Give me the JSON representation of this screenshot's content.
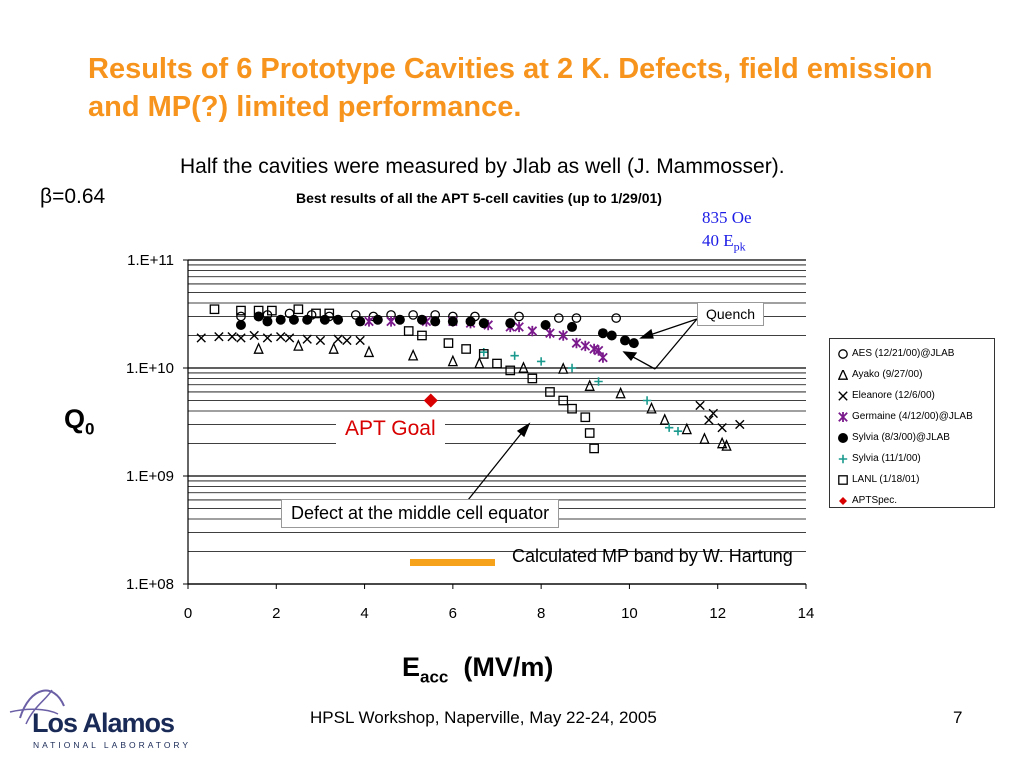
{
  "slide": {
    "title": "Results of 6 Prototype Cavities at 2 K.  Defects, field emission and MP(?) limited performance.",
    "subtitle": "Half the cavities were measured by Jlab as well (J. Mammosser).",
    "beta": "β=0.64",
    "footer": "HPSL Workshop, Naperville, May 22-24, 2005",
    "page": "7",
    "logo_name": "Los Alamos",
    "logo_sub": "NATIONAL LABORATORY"
  },
  "annotations": {
    "quench_oe": "835 Oe",
    "quench_epk": "40 E",
    "quench_epk_sub": "pk",
    "quench": "Quench",
    "apt_goal": "APT Goal",
    "defect": "Defect at the middle cell equator",
    "mp_band": "Calculated MP band by W. Hartung"
  },
  "colors": {
    "title": "#f7941d",
    "apt_spec": "#d80000",
    "germaine": "#7a1a8c",
    "sylvia_nov": "#1a9a8e",
    "mp_band": "#f7a21b",
    "quench_text": "#1c1ce6"
  },
  "chart_data": {
    "type": "scatter",
    "title": "Best results of all the APT 5-cell cavities (up to 1/29/01)",
    "xlabel": "E",
    "xlabel_sub": "acc",
    "xlabel_unit": "(MV/m)",
    "ylabel": "Q",
    "ylabel_sub": "0",
    "xlim": [
      0,
      14
    ],
    "ylim": [
      100000000,
      100000000000
    ],
    "yscale": "log",
    "grid": true,
    "legend_position": "right",
    "x_ticks": [
      "0",
      "2",
      "4",
      "6",
      "8",
      "10",
      "12",
      "14"
    ],
    "y_ticks": [
      "1.E+08",
      "1.E+09",
      "1.E+10",
      "1.E+11"
    ],
    "series": [
      {
        "name": "AES (12/21/00)@JLAB",
        "marker": "circle-open",
        "color": "#000000",
        "x": [
          1.2,
          1.8,
          2.3,
          2.8,
          3.2,
          3.8,
          4.2,
          4.6,
          5.1,
          5.6,
          6.0,
          6.5,
          7.5,
          8.4,
          8.8,
          9.7
        ],
        "y": [
          30000000000,
          31000000000,
          32000000000,
          31000000000,
          30000000000,
          31000000000,
          30000000000,
          31000000000,
          31000000000,
          31000000000,
          30000000000,
          30000000000,
          30000000000,
          29000000000,
          29000000000,
          29000000000
        ]
      },
      {
        "name": "Ayako (9/27/00)",
        "marker": "triangle-open",
        "color": "#000000",
        "x": [
          1.6,
          2.5,
          3.3,
          4.1,
          5.1,
          6.0,
          6.6,
          7.6,
          8.5,
          9.1,
          9.8,
          10.5,
          10.8,
          11.3,
          11.7,
          12.1,
          12.2
        ],
        "y": [
          15000000000,
          16000000000,
          15000000000,
          14000000000,
          13000000000,
          11500000000,
          11000000000,
          10000000000,
          9800000000,
          6800000000,
          5800000000,
          4200000000,
          3300000000,
          2700000000,
          2200000000,
          2000000000,
          1900000000
        ],
        "x_extra": []
      },
      {
        "name": "Eleanore (12/6/00)",
        "marker": "x",
        "color": "#000000",
        "x": [
          0.3,
          0.7,
          1.0,
          1.2,
          1.5,
          1.8,
          2.1,
          2.3,
          2.7,
          3.0,
          3.4,
          3.6,
          3.9,
          11.6,
          11.9,
          11.8,
          12.1,
          12.5
        ],
        "y": [
          19000000000,
          19500000000,
          19500000000,
          19000000000,
          20000000000,
          19000000000,
          19500000000,
          19000000000,
          18500000000,
          18000000000,
          18500000000,
          18000000000,
          18000000000,
          4500000000,
          3800000000,
          3300000000,
          2800000000,
          3000000000
        ]
      },
      {
        "name": "Germaine (4/12/00)@JLAB",
        "marker": "star",
        "color": "#7a1a8c",
        "x": [
          4.1,
          4.6,
          5.4,
          6.0,
          6.4,
          6.8,
          7.3,
          7.5,
          7.8,
          8.2,
          8.5,
          8.8,
          9.0,
          9.2,
          9.3,
          9.4
        ],
        "y": [
          27000000000,
          27000000000,
          27000000000,
          27000000000,
          26000000000,
          25000000000,
          24000000000,
          24000000000,
          22000000000,
          21000000000,
          20000000000,
          17000000000,
          16000000000,
          15000000000,
          14500000000,
          12500000000
        ]
      },
      {
        "name": "Sylvia (8/3/00)@JLAB",
        "marker": "circle-filled",
        "color": "#000000",
        "x": [
          1.2,
          1.6,
          1.8,
          2.1,
          2.4,
          2.7,
          3.1,
          3.4,
          3.9,
          4.3,
          4.8,
          5.3,
          5.6,
          6.0,
          6.4,
          6.7,
          7.3,
          8.1,
          8.7,
          9.4,
          9.6,
          9.9,
          10.1
        ],
        "y": [
          25000000000,
          30000000000,
          27000000000,
          28000000000,
          28000000000,
          28000000000,
          28000000000,
          28000000000,
          27000000000,
          28000000000,
          28000000000,
          28000000000,
          27000000000,
          27000000000,
          27000000000,
          26000000000,
          26000000000,
          25000000000,
          24000000000,
          21000000000,
          20000000000,
          18000000000,
          17000000000
        ]
      },
      {
        "name": "Sylvia (11/1/00)",
        "marker": "plus",
        "color": "#1a9a8e",
        "x": [
          6.7,
          7.4,
          8.0,
          8.7,
          9.3,
          10.4,
          10.9,
          11.1
        ],
        "y": [
          14000000000,
          13000000000,
          11500000000,
          10000000000,
          7500000000,
          5000000000,
          2800000000,
          2600000000
        ]
      },
      {
        "name": "LANL (1/18/01)",
        "marker": "square-open",
        "color": "#000000",
        "x": [
          0.6,
          1.2,
          1.6,
          1.9,
          2.5,
          2.9,
          3.2,
          5.0,
          5.3,
          5.9,
          6.3,
          6.7,
          7.0,
          7.3,
          7.8,
          8.2,
          8.5,
          8.7,
          9.0,
          9.1,
          9.2
        ],
        "y": [
          35000000000,
          34000000000,
          34000000000,
          34000000000,
          35000000000,
          32000000000,
          32000000000,
          22000000000,
          20000000000,
          17000000000,
          15000000000,
          13500000000,
          11000000000,
          9500000000,
          8000000000,
          6000000000,
          5000000000,
          4200000000,
          3500000000,
          2500000000,
          1800000000
        ]
      },
      {
        "name": "APTSpec.",
        "marker": "diamond-filled",
        "color": "#d80000",
        "x": [
          5.5
        ],
        "y": [
          5000000000
        ]
      }
    ]
  }
}
